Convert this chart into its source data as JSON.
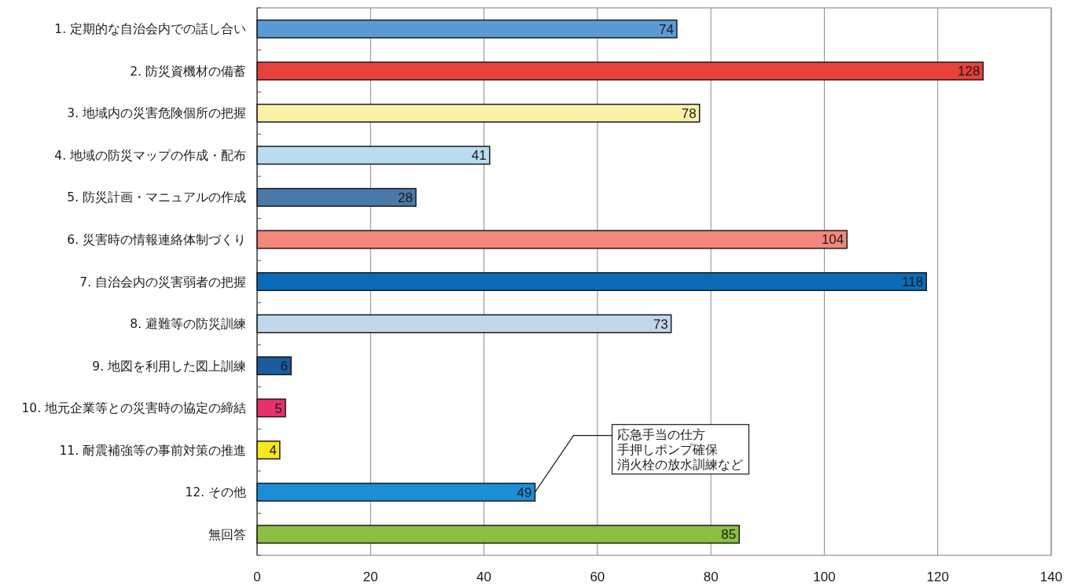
{
  "chart_data": {
    "type": "bar",
    "orientation": "horizontal",
    "categories": [
      "1. 定期的な自治会内での話し合い",
      "2. 防災資機材の備蓄",
      "3. 地域内の災害危険個所の把握",
      "4. 地域の防災マップの作成・配布",
      "5. 防災計画・マニュアルの作成",
      "6. 災害時の情報連絡体制づくり",
      "7. 自治会内の災害弱者の把握",
      "8. 避難等の防災訓練",
      "9. 地図を利用した図上訓練",
      "10. 地元企業等との災害時の協定の締結",
      "11. 耐震補強等の事前対策の推進",
      "12. その他",
      "無回答"
    ],
    "values": [
      74,
      128,
      78,
      41,
      28,
      104,
      118,
      73,
      6,
      5,
      4,
      49,
      85
    ],
    "colors": [
      "#5b9bd5",
      "#e8403a",
      "#f8f2a8",
      "#b8dcf0",
      "#4a78a8",
      "#f4877a",
      "#0a6cb8",
      "#c2d6ec",
      "#1c5c9c",
      "#e8306c",
      "#f8e81c",
      "#1a8fd8",
      "#8cc040"
    ],
    "xlim": [
      0,
      140
    ],
    "xticks": [
      0,
      20,
      40,
      60,
      80,
      100,
      120,
      140
    ],
    "grid": "x",
    "data_labels": true,
    "annotations": [
      {
        "text": "応急手当の仕方",
        "x": 49,
        "y": "12. その他"
      },
      "手押しポンプ確保",
      "消火栓の放水訓練など"
    ]
  }
}
